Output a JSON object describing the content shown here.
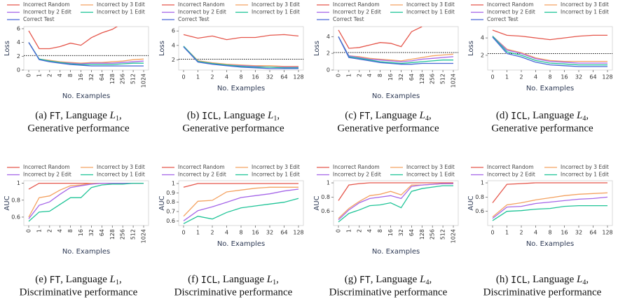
{
  "chart_data": [
    {
      "type": "line",
      "y_label": "Loss",
      "x_label": "No. Examples",
      "rotate_xticks": true,
      "legend": "top",
      "threshold": 2.1,
      "categories": [
        "0",
        "1",
        "2",
        "4",
        "8",
        "16",
        "32",
        "64",
        "128",
        "256",
        "512",
        "1024"
      ],
      "ylim": [
        0,
        6.3
      ],
      "yticks": [
        0,
        2,
        4,
        6
      ],
      "series": [
        {
          "name": "Incorrect Random",
          "color": "#e5564b",
          "values": [
            5.7,
            3.1,
            3.1,
            3.4,
            3.9,
            3.6,
            4.7,
            5.4,
            5.9,
            6.8,
            null,
            null
          ]
        },
        {
          "name": "Incorrect by 3 Edit",
          "color": "#f4a261",
          "values": [
            4.0,
            1.6,
            1.4,
            1.2,
            1.1,
            1.0,
            1.1,
            1.1,
            1.2,
            1.3,
            1.5,
            1.6
          ]
        },
        {
          "name": "Incorrect by 2 Edit",
          "color": "#a566e8",
          "values": [
            4.0,
            1.6,
            1.3,
            1.1,
            1.0,
            0.9,
            1.0,
            1.0,
            1.0,
            1.1,
            1.2,
            1.3
          ]
        },
        {
          "name": "Incorrect by 1 Edit",
          "color": "#1fc497",
          "values": [
            4.0,
            1.6,
            1.3,
            1.1,
            0.9,
            0.8,
            0.8,
            0.8,
            0.8,
            0.9,
            1.0,
            1.0
          ]
        },
        {
          "name": "Correct Test",
          "color": "#4766d6",
          "values": [
            4.0,
            1.5,
            1.2,
            1.0,
            0.8,
            0.7,
            0.6,
            0.6,
            0.6,
            0.6,
            0.6,
            0.6
          ]
        }
      ],
      "caption_line1": [
        "(a) ",
        "FT",
        ", Language ",
        "L",
        "1",
        ","
      ],
      "caption_line2": "Generative performance"
    },
    {
      "type": "line",
      "y_label": "Loss",
      "x_label": "No. Examples",
      "rotate_xticks": false,
      "legend": "top",
      "threshold": 2.1,
      "categories": [
        "0",
        "1",
        "2",
        "4",
        "8",
        "16",
        "32",
        "64",
        "128"
      ],
      "ylim": [
        0.6,
        6.6
      ],
      "yticks": [
        2,
        4,
        6
      ],
      "series": [
        {
          "name": "Incorrect Random",
          "color": "#e5564b",
          "values": [
            5.5,
            5.0,
            5.3,
            4.8,
            5.1,
            5.1,
            5.4,
            5.5,
            5.3
          ]
        },
        {
          "name": "Incorrect by 3 Edit",
          "color": "#f4a261",
          "values": [
            3.9,
            1.9,
            1.6,
            1.4,
            1.3,
            1.2,
            1.2,
            1.1,
            1.1
          ]
        },
        {
          "name": "Incorrect by 2 Edit",
          "color": "#a566e8",
          "values": [
            3.9,
            1.8,
            1.5,
            1.3,
            1.2,
            1.1,
            1.0,
            1.0,
            1.0
          ]
        },
        {
          "name": "Incorrect by 1 Edit",
          "color": "#1fc497",
          "values": [
            3.9,
            1.8,
            1.5,
            1.3,
            1.1,
            1.0,
            1.0,
            0.9,
            0.9
          ]
        },
        {
          "name": "Correct Test",
          "color": "#4766d6",
          "values": [
            3.8,
            1.7,
            1.4,
            1.2,
            1.0,
            0.9,
            0.8,
            0.8,
            0.8
          ]
        }
      ],
      "caption_line1": [
        "(b) ",
        "ICL",
        ", Language ",
        "L",
        "1",
        ","
      ],
      "caption_line2": "Generative performance"
    },
    {
      "type": "line",
      "y_label": "Loss",
      "x_label": "No. Examples",
      "rotate_xticks": true,
      "legend": "top",
      "threshold": 2.1,
      "categories": [
        "0",
        "1",
        "2",
        "4",
        "8",
        "16",
        "32",
        "64",
        "128",
        "256",
        "512",
        "1024"
      ],
      "ylim": [
        0,
        5.2
      ],
      "yticks": [
        0,
        2,
        4
      ],
      "series": [
        {
          "name": "Incorrect Random",
          "color": "#e5564b",
          "values": [
            4.8,
            2.6,
            2.7,
            3.0,
            3.3,
            3.2,
            2.8,
            4.6,
            5.2,
            null,
            null,
            null
          ]
        },
        {
          "name": "Incorrect by 3 Edit",
          "color": "#f4a261",
          "values": [
            4.0,
            1.7,
            1.6,
            1.4,
            1.3,
            1.2,
            1.1,
            1.3,
            1.5,
            1.7,
            1.8,
            1.9
          ]
        },
        {
          "name": "Incorrect by 2 Edit",
          "color": "#a566e8",
          "values": [
            4.0,
            1.7,
            1.5,
            1.3,
            1.2,
            1.1,
            1.0,
            1.1,
            1.3,
            1.4,
            1.5,
            1.6
          ]
        },
        {
          "name": "Incorrect by 1 Edit",
          "color": "#1fc497",
          "values": [
            4.0,
            1.6,
            1.4,
            1.2,
            1.0,
            0.9,
            0.8,
            0.9,
            1.0,
            1.1,
            1.2,
            1.2
          ]
        },
        {
          "name": "Correct Test",
          "color": "#4766d6",
          "values": [
            4.0,
            1.5,
            1.3,
            1.1,
            0.9,
            0.8,
            0.7,
            0.7,
            0.8,
            0.8,
            0.8,
            0.8
          ]
        }
      ],
      "caption_line1": [
        "(c) ",
        "FT",
        ", Language ",
        "L",
        "4",
        ","
      ],
      "caption_line2": "Generative performance"
    },
    {
      "type": "line",
      "y_label": "Loss",
      "x_label": "No. Examples",
      "rotate_xticks": false,
      "legend": "top",
      "threshold": 2.2,
      "categories": [
        "0",
        "1",
        "2",
        "4",
        "8",
        "16",
        "32",
        "64",
        "128"
      ],
      "ylim": [
        0.3,
        5.3
      ],
      "yticks": [
        2,
        4
      ],
      "series": [
        {
          "name": "Incorrect Random",
          "color": "#e5564b",
          "values": [
            4.9,
            4.3,
            4.2,
            4.0,
            3.8,
            4.0,
            4.2,
            4.3,
            4.3
          ]
        },
        {
          "name": "Incorrect by 3 Edit",
          "color": "#f4a261",
          "values": [
            4.2,
            2.7,
            2.3,
            1.7,
            1.4,
            1.3,
            1.3,
            1.3,
            1.3
          ]
        },
        {
          "name": "Incorrect by 2 Edit",
          "color": "#a566e8",
          "values": [
            4.2,
            2.6,
            2.2,
            1.6,
            1.3,
            1.2,
            1.1,
            1.1,
            1.1
          ]
        },
        {
          "name": "Incorrect by 1 Edit",
          "color": "#1fc497",
          "values": [
            4.2,
            2.4,
            2.0,
            1.4,
            1.1,
            1.0,
            0.9,
            0.9,
            0.9
          ]
        },
        {
          "name": "Correct Test",
          "color": "#4766d6",
          "values": [
            4.1,
            2.2,
            1.8,
            1.2,
            0.9,
            0.8,
            0.7,
            0.7,
            0.7
          ]
        }
      ],
      "caption_line1": [
        "(d) ",
        "ICL",
        ", Language ",
        "L",
        "4",
        ","
      ],
      "caption_line2": "Generative performance"
    },
    {
      "type": "line",
      "y_label": "AUC",
      "x_label": "No. Examples",
      "rotate_xticks": true,
      "legend": "top",
      "categories": [
        "0",
        "1",
        "2",
        "4",
        "8",
        "16",
        "32",
        "64",
        "128",
        "256",
        "512",
        "1024"
      ],
      "ylim": [
        0.5,
        1.03
      ],
      "yticks": [
        0.6,
        0.8,
        1
      ],
      "series": [
        {
          "name": "Incorrect Random",
          "color": "#e5564b",
          "values": [
            0.93,
            1,
            1,
            1,
            1,
            1,
            1,
            1,
            1,
            1,
            1,
            1
          ]
        },
        {
          "name": "Incorrect by 3 Edit",
          "color": "#f4a261",
          "values": [
            0.6,
            0.83,
            0.85,
            0.92,
            0.97,
            0.98,
            1,
            1,
            1,
            1,
            1,
            1
          ]
        },
        {
          "name": "Incorrect by 2 Edit",
          "color": "#a566e8",
          "values": [
            0.58,
            0.74,
            0.78,
            0.87,
            0.95,
            0.97,
            0.99,
            1,
            1,
            1,
            1,
            1
          ]
        },
        {
          "name": "Incorrect by 1 Edit",
          "color": "#1fc497",
          "values": [
            0.55,
            0.66,
            0.67,
            0.75,
            0.83,
            0.83,
            0.95,
            0.98,
            0.99,
            0.99,
            1,
            1
          ]
        }
      ],
      "caption_line1": [
        "(e) ",
        "FT",
        ", Language ",
        "L",
        "1",
        ","
      ],
      "caption_line2": "Discriminative performance"
    },
    {
      "type": "line",
      "y_label": "AUC",
      "x_label": "No. Examples",
      "rotate_xticks": false,
      "legend": "top",
      "categories": [
        "0",
        "1",
        "2",
        "4",
        "8",
        "16",
        "32",
        "64",
        "128"
      ],
      "ylim": [
        0.55,
        1.03
      ],
      "yticks": [
        0.6,
        0.7,
        0.8,
        0.9,
        1
      ],
      "series": [
        {
          "name": "Incorrect Random",
          "color": "#e5564b",
          "values": [
            0.96,
            1,
            1,
            1,
            1,
            1,
            1,
            1,
            1
          ]
        },
        {
          "name": "Incorrect by 3 Edit",
          "color": "#f4a261",
          "values": [
            0.65,
            0.81,
            0.82,
            0.91,
            0.93,
            0.95,
            0.96,
            0.96,
            0.96
          ]
        },
        {
          "name": "Incorrect by 2 Edit",
          "color": "#a566e8",
          "values": [
            0.6,
            0.71,
            0.75,
            0.8,
            0.85,
            0.87,
            0.89,
            0.92,
            0.94
          ]
        },
        {
          "name": "Incorrect by 1 Edit",
          "color": "#1fc497",
          "values": [
            0.57,
            0.65,
            0.62,
            0.69,
            0.74,
            0.76,
            0.78,
            0.8,
            0.84
          ]
        }
      ],
      "caption_line1": [
        "(f) ",
        "ICL",
        ", Language ",
        "L",
        "1",
        ","
      ],
      "caption_line2": "Discriminative performance"
    },
    {
      "type": "line",
      "y_label": "AUC",
      "x_label": "No. Examples",
      "rotate_xticks": true,
      "legend": "top",
      "categories": [
        "0",
        "1",
        "2",
        "4",
        "8",
        "16",
        "32",
        "64",
        "128",
        "256",
        "512",
        "1024"
      ],
      "ylim": [
        0.4,
        1.03
      ],
      "yticks": [
        0.6,
        0.8,
        1
      ],
      "series": [
        {
          "name": "Incorrect Random",
          "color": "#e5564b",
          "values": [
            0.75,
            0.97,
            0.99,
            1,
            1,
            1,
            1,
            1,
            1,
            1,
            1,
            1
          ]
        },
        {
          "name": "Incorrect by 3 Edit",
          "color": "#f4a261",
          "values": [
            0.5,
            0.64,
            0.74,
            0.82,
            0.84,
            0.88,
            0.83,
            0.97,
            0.97,
            0.98,
            0.99,
            0.99
          ]
        },
        {
          "name": "Incorrect by 2 Edit",
          "color": "#a566e8",
          "values": [
            0.48,
            0.62,
            0.72,
            0.78,
            0.8,
            0.82,
            0.78,
            0.95,
            0.97,
            0.98,
            0.99,
            0.99
          ]
        },
        {
          "name": "Incorrect by 1 Edit",
          "color": "#1fc497",
          "values": [
            0.45,
            0.57,
            0.62,
            0.68,
            0.69,
            0.72,
            0.65,
            0.88,
            0.92,
            0.94,
            0.96,
            0.96
          ]
        }
      ],
      "caption_line1": [
        "(g) ",
        "FT",
        ", Language ",
        "L",
        "4",
        ","
      ],
      "caption_line2": "Discriminative performance"
    },
    {
      "type": "line",
      "y_label": "AUC",
      "x_label": "No. Examples",
      "rotate_xticks": false,
      "legend": "top",
      "categories": [
        "0",
        "1",
        "2",
        "4",
        "8",
        "16",
        "32",
        "64",
        "128"
      ],
      "ylim": [
        0.4,
        1.03
      ],
      "yticks": [
        0.6,
        0.8,
        1
      ],
      "series": [
        {
          "name": "Incorrect Random",
          "color": "#e5564b",
          "values": [
            0.72,
            0.98,
            0.99,
            1,
            1,
            1,
            1,
            1,
            1
          ]
        },
        {
          "name": "Incorrect by 3 Edit",
          "color": "#f4a261",
          "values": [
            0.52,
            0.69,
            0.72,
            0.76,
            0.79,
            0.82,
            0.84,
            0.85,
            0.86
          ]
        },
        {
          "name": "Incorrect by 2 Edit",
          "color": "#a566e8",
          "values": [
            0.5,
            0.66,
            0.67,
            0.71,
            0.73,
            0.75,
            0.77,
            0.78,
            0.8
          ]
        },
        {
          "name": "Incorrect by 1 Edit",
          "color": "#1fc497",
          "values": [
            0.47,
            0.6,
            0.61,
            0.63,
            0.64,
            0.67,
            0.68,
            0.68,
            0.68
          ]
        }
      ],
      "caption_line1": [
        "(h) ",
        "ICL",
        ", Language ",
        "L",
        "4",
        ","
      ],
      "caption_line2": "Discriminative performance"
    }
  ]
}
